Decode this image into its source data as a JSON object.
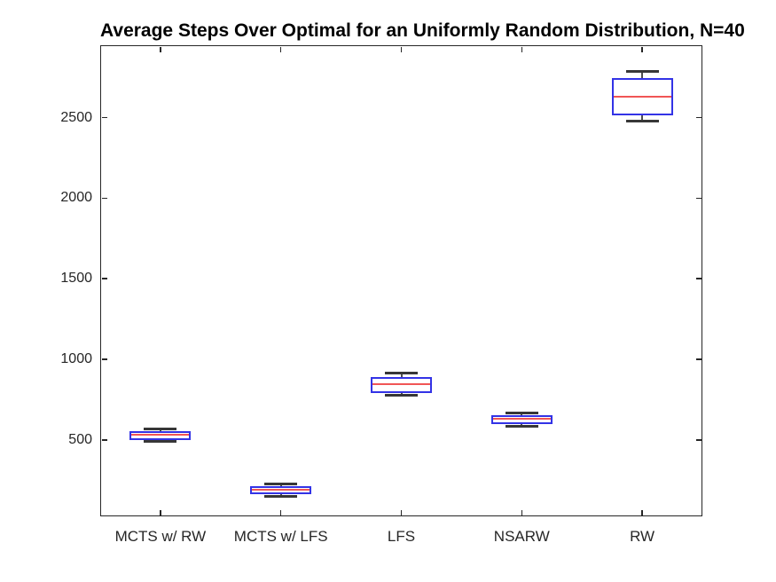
{
  "chart_data": {
    "type": "boxplot",
    "title": "Average Steps Over Optimal for an Uniformly Random Distribution, N=40",
    "xlabel": "",
    "ylabel": "",
    "categories": [
      "MCTS w/ RW",
      "MCTS w/ LFS",
      "LFS",
      "NSARW",
      "RW"
    ],
    "series": [
      {
        "name": "MCTS w/ RW",
        "whislo": 490,
        "q1": 500,
        "med": 530,
        "q3": 555,
        "whishi": 565
      },
      {
        "name": "MCTS w/ LFS",
        "whislo": 150,
        "q1": 160,
        "med": 190,
        "q3": 215,
        "whishi": 225
      },
      {
        "name": "LFS",
        "whislo": 775,
        "q1": 790,
        "med": 845,
        "q3": 890,
        "whishi": 915
      },
      {
        "name": "NSARW",
        "whislo": 585,
        "q1": 600,
        "med": 630,
        "q3": 655,
        "whishi": 665
      },
      {
        "name": "RW",
        "whislo": 2480,
        "q1": 2515,
        "med": 2630,
        "q3": 2745,
        "whishi": 2790
      }
    ],
    "ylim": [
      25,
      2950
    ],
    "ytick_values": [
      500,
      1000,
      1500,
      2000,
      2500
    ],
    "ytick_labels": [
      "500",
      "1000",
      "1500",
      "2000",
      "2500"
    ],
    "grid": false,
    "legend": "none",
    "box_on": true,
    "tick_direction": "in",
    "colors": {
      "background": "#ffffff",
      "axis": "#262626",
      "tick_label": "#262626",
      "title": "#000000",
      "box_edge": "#3333e6",
      "median": "#f05555",
      "whisker_cap": "#373737",
      "whisker_line": "#4d4d4d"
    }
  }
}
